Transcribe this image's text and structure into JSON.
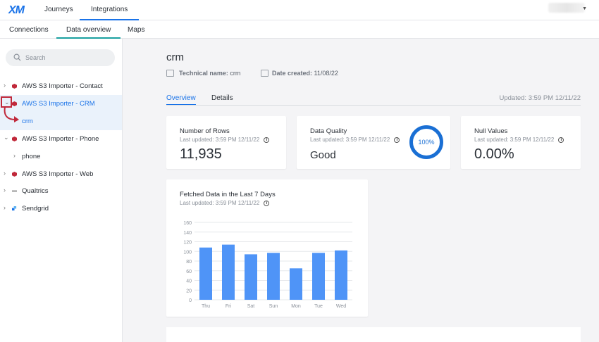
{
  "topbar": {
    "logo": "XM",
    "tabs": [
      "Journeys",
      "Integrations"
    ]
  },
  "subbar": {
    "tabs": [
      "Connections",
      "Data overview",
      "Maps"
    ]
  },
  "sidebar": {
    "search_placeholder": "Search",
    "items": [
      {
        "label": "AWS S3 Importer - Contact"
      },
      {
        "label": "AWS S3 Importer - CRM"
      },
      {
        "label": "crm"
      },
      {
        "label": "AWS S3 Importer - Phone"
      },
      {
        "label": "phone"
      },
      {
        "label": "AWS S3 Importer - Web"
      },
      {
        "label": "Qualtrics"
      },
      {
        "label": "Sendgrid"
      }
    ]
  },
  "main": {
    "title": "crm",
    "technical_name_key": "Technical name:",
    "technical_name_value": "crm",
    "date_created_key": "Date created:",
    "date_created_value": "11/08/22",
    "tabs": [
      "Overview",
      "Details"
    ],
    "updated": "Updated: 3:59 PM 12/11/22"
  },
  "cards": {
    "rows": {
      "title": "Number of Rows",
      "sub": "Last updated: 3:59 PM 12/11/22",
      "value": "11,935"
    },
    "quality": {
      "title": "Data Quality",
      "sub": "Last updated: 3:59 PM 12/11/22",
      "value": "Good",
      "ring": "100%"
    },
    "nulls": {
      "title": "Null Values",
      "sub": "Last updated: 3:59 PM 12/11/22",
      "value": "0.00%"
    },
    "chart": {
      "title": "Fetched Data in the Last 7 Days",
      "sub": "Last updated: 3:59 PM 12/11/22"
    }
  },
  "colors": {
    "accent": "#1a73e8",
    "bar": "#4f94f7",
    "highlight": "#c0283a"
  },
  "chart_data": {
    "type": "bar",
    "categories": [
      "Thu",
      "Fri",
      "Sat",
      "Sun",
      "Mon",
      "Tue",
      "Wed"
    ],
    "values": [
      108,
      114,
      94,
      97,
      65,
      97,
      102
    ],
    "yticks": [
      0,
      20,
      40,
      60,
      80,
      100,
      120,
      140,
      160
    ],
    "ylim": [
      0,
      160
    ],
    "grid": true
  }
}
